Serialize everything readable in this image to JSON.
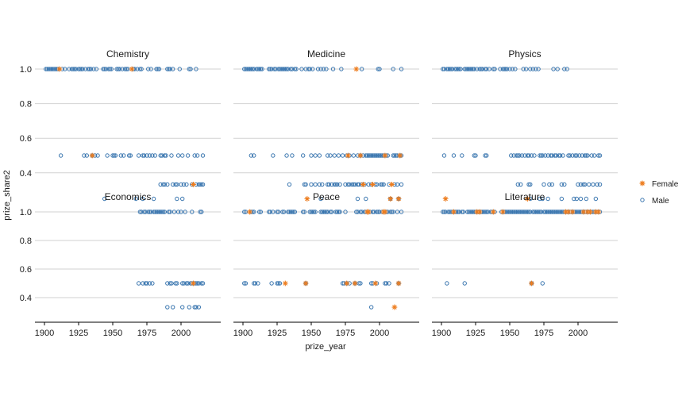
{
  "figure_title": "",
  "chart_data": {
    "type": "scatter",
    "title": "",
    "xlabel": "prize_year",
    "ylabel": "prize_share2",
    "x_ticks": [
      1900,
      1925,
      1950,
      1975,
      2000
    ],
    "y_ticks": [
      1.0,
      0.8,
      0.6,
      0.4
    ],
    "y_tick_labels": [
      "1.0",
      "0.8",
      "0.6",
      "0.4"
    ],
    "x_domain": [
      1900,
      2016
    ],
    "y_domain": [
      0.25,
      1.0
    ],
    "grid": "horizontal-only",
    "legend_position": "right",
    "legend": [
      {
        "label": "Female",
        "marker": "asterisk-icon",
        "color": "#ed7d1f"
      },
      {
        "label": "Male",
        "marker": "open-circle-icon",
        "color": "#3a76af"
      }
    ],
    "colors": {
      "female": "#ed7d1f",
      "male": "#3a76af",
      "gridline": "#d2d2d2",
      "axis_line": "#000000",
      "text": "#1a1a1a"
    },
    "facets": [
      {
        "title": "Chemistry",
        "row": 0,
        "col": 0,
        "groups": [
          {
            "share": 1.0,
            "male": [
              1901,
              1902,
              1903,
              1904,
              1905,
              1906,
              1907,
              1908,
              1909,
              1910,
              1913,
              1915,
              1918,
              1920,
              1921,
              1922,
              1923,
              1925,
              1926,
              1927,
              1928,
              1930,
              1932,
              1933,
              1934,
              1936,
              1938,
              1943,
              1944,
              1945,
              1947,
              1948,
              1949,
              1953,
              1954,
              1955,
              1957,
              1959,
              1960,
              1961,
              1965,
              1966,
              1968,
              1970,
              1971,
              1976,
              1978,
              1982,
              1983,
              1984,
              1990,
              1991,
              1992,
              1994,
              1999,
              2006,
              2007,
              2011
            ],
            "female": [
              1911,
              1964
            ]
          },
          {
            "share": 0.5,
            "male": [
              1912,
              1929,
              1931,
              1935,
              1937,
              1939,
              1946,
              1950,
              1951,
              1952,
              1956,
              1958,
              1962,
              1963,
              1969,
              1972,
              1973,
              1975,
              1977,
              1979,
              1981,
              1985,
              1986,
              1988,
              1989,
              1993,
              1998,
              2001,
              2005,
              2010,
              2012,
              2016
            ],
            "female": [
              1935
            ]
          },
          {
            "share": 0.333,
            "male": [
              1985,
              1987,
              1988,
              1990,
              1994,
              1996,
              1997,
              2000,
              2002,
              2004,
              2008,
              2011,
              2013,
              2014,
              2015,
              2016
            ],
            "female": [
              2009
            ]
          },
          {
            "share": 0.25,
            "male": [
              1944,
              1967,
              1972,
              1980,
              1997,
              2001
            ],
            "female": []
          }
        ]
      },
      {
        "title": "Medicine",
        "row": 0,
        "col": 1,
        "groups": [
          {
            "share": 1.0,
            "male": [
              1901,
              1902,
              1903,
              1904,
              1905,
              1906,
              1907,
              1908,
              1910,
              1911,
              1912,
              1913,
              1914,
              1919,
              1920,
              1921,
              1923,
              1924,
              1926,
              1927,
              1928,
              1929,
              1930,
              1931,
              1932,
              1933,
              1935,
              1936,
              1938,
              1939,
              1943,
              1946,
              1948,
              1949,
              1951,
              1955,
              1957,
              1959,
              1961,
              1966,
              1972,
              1987,
              1999,
              2000,
              2010,
              2016
            ],
            "female": [
              1983
            ]
          },
          {
            "share": 0.5,
            "male": [
              1906,
              1908,
              1922,
              1932,
              1936,
              1944,
              1950,
              1953,
              1956,
              1962,
              1964,
              1967,
              1970,
              1973,
              1976,
              1978,
              1981,
              1984,
              1986,
              1988,
              1990,
              1991,
              1992,
              1993,
              1994,
              1995,
              1996,
              1997,
              1998,
              1999,
              2000,
              2001,
              2002,
              2003,
              2005,
              2006,
              2010,
              2011,
              2012,
              2013,
              2015,
              2016
            ],
            "female": [
              1977,
              1986,
              2004,
              2015
            ]
          },
          {
            "share": 0.333,
            "male": [
              1934,
              1945,
              1946,
              1950,
              1953,
              1956,
              1958,
              1962,
              1963,
              1965,
              1967,
              1968,
              1969,
              1971,
              1975,
              1977,
              1978,
              1980,
              1981,
              1982,
              1984,
              1985,
              1987,
              1989,
              1992,
              1994,
              1997,
              1998,
              2001,
              2002,
              2003,
              2007,
              2011,
              2013,
              2016
            ],
            "female": [
              1988,
              1995,
              2009
            ]
          },
          {
            "share": 0.25,
            "male": [
              1957,
              1984,
              1990,
              2008,
              2014
            ],
            "female": [
              1947,
              2008,
              2014
            ]
          }
        ]
      },
      {
        "title": "Physics",
        "row": 0,
        "col": 2,
        "groups": [
          {
            "share": 1.0,
            "male": [
              1901,
              1902,
              1904,
              1905,
              1906,
              1907,
              1908,
              1910,
              1911,
              1912,
              1913,
              1914,
              1917,
              1918,
              1919,
              1920,
              1921,
              1922,
              1923,
              1924,
              1926,
              1928,
              1929,
              1930,
              1932,
              1933,
              1935,
              1938,
              1939,
              1943,
              1945,
              1946,
              1947,
              1948,
              1950,
              1952,
              1954,
              1960,
              1962,
              1965,
              1967,
              1969,
              1971,
              1982,
              1985,
              1990,
              1992
            ],
            "female": []
          },
          {
            "share": 0.5,
            "male": [
              1902,
              1909,
              1915,
              1924,
              1925,
              1932,
              1933,
              1951,
              1953,
              1955,
              1956,
              1957,
              1959,
              1961,
              1963,
              1964,
              1966,
              1968,
              1972,
              1973,
              1974,
              1976,
              1978,
              1980,
              1981,
              1983,
              1984,
              1986,
              1987,
              1989,
              1993,
              1994,
              1996,
              1998,
              1999,
              2001,
              2003,
              2005,
              2006,
              2007,
              2010,
              2012,
              2015,
              2016
            ],
            "female": []
          },
          {
            "share": 0.333,
            "male": [
              1956,
              1958,
              1964,
              1965,
              1975,
              1979,
              1981,
              1988,
              1990,
              2000,
              2002,
              2004,
              2005,
              2008,
              2011,
              2014,
              2016
            ],
            "female": []
          },
          {
            "share": 0.25,
            "male": [
              1965,
              1972,
              1974,
              1978,
              1988,
              1997,
              1999,
              2002,
              2006,
              2013
            ],
            "female": [
              1903,
              1963
            ]
          }
        ]
      },
      {
        "title": "Economics",
        "row": 1,
        "col": 0,
        "groups": [
          {
            "share": 1.0,
            "male": [
              1970,
              1971,
              1973,
              1974,
              1976,
              1977,
              1978,
              1980,
              1981,
              1982,
              1983,
              1984,
              1985,
              1986,
              1987,
              1988,
              1991,
              1992,
              1995,
              1998,
              2000,
              2003,
              2008,
              2014,
              2015
            ],
            "female": []
          },
          {
            "share": 0.5,
            "male": [
              1969,
              1972,
              1974,
              1975,
              1977,
              1979,
              1990,
              1992,
              1993,
              1996,
              1997,
              2001,
              2002,
              2004,
              2005,
              2007,
              2008,
              2010,
              2011,
              2012,
              2013,
              2015,
              2016
            ],
            "female": [
              2009
            ]
          },
          {
            "share": 0.333,
            "male": [
              1990,
              1994,
              2001,
              2006,
              2010,
              2011,
              2013
            ],
            "female": []
          }
        ]
      },
      {
        "title": "Peace",
        "row": 1,
        "col": 1,
        "groups": [
          {
            "share": 1.0,
            "male": [
              1901,
              1902,
              1906,
              1907,
              1908,
              1912,
              1913,
              1919,
              1920,
              1922,
              1925,
              1926,
              1929,
              1930,
              1933,
              1934,
              1935,
              1936,
              1937,
              1938,
              1944,
              1945,
              1949,
              1950,
              1951,
              1952,
              1953,
              1957,
              1958,
              1959,
              1960,
              1961,
              1962,
              1964,
              1965,
              1968,
              1969,
              1970,
              1971,
              1975,
              1983,
              1984,
              1986,
              1987,
              1989,
              1990,
              1993,
              1995,
              1996,
              1998,
              1999,
              2000,
              2002,
              2005,
              2006,
              2008,
              2009,
              2010,
              2013,
              2016
            ],
            "female": [
              1905,
              1991,
              1992,
              2003,
              2004
            ]
          },
          {
            "share": 0.5,
            "male": [
              1901,
              1902,
              1908,
              1909,
              1911,
              1921,
              1925,
              1926,
              1927,
              1946,
              1973,
              1974,
              1976,
              1978,
              1982,
              1985,
              1986,
              1994,
              1995,
              1998,
              2004,
              2005,
              2007,
              2014
            ],
            "female": [
              1931,
              1946,
              1976,
              1982,
              1997,
              2014
            ]
          },
          {
            "share": 0.333,
            "male": [
              1994
            ],
            "female": [
              2011
            ]
          }
        ]
      },
      {
        "title": "Literature",
        "row": 1,
        "col": 2,
        "groups": [
          {
            "share": 1.0,
            "male": [
              1901,
              1902,
              1903,
              1905,
              1906,
              1907,
              1908,
              1910,
              1911,
              1912,
              1913,
              1915,
              1916,
              1919,
              1920,
              1921,
              1922,
              1923,
              1924,
              1925,
              1927,
              1929,
              1930,
              1931,
              1932,
              1933,
              1934,
              1936,
              1937,
              1939,
              1944,
              1946,
              1947,
              1948,
              1949,
              1950,
              1951,
              1952,
              1953,
              1954,
              1955,
              1956,
              1957,
              1958,
              1959,
              1960,
              1961,
              1962,
              1963,
              1964,
              1965,
              1967,
              1968,
              1969,
              1970,
              1971,
              1972,
              1973,
              1975,
              1976,
              1977,
              1978,
              1979,
              1980,
              1981,
              1982,
              1983,
              1984,
              1985,
              1986,
              1987,
              1988,
              1989,
              1990,
              1992,
              1994,
              1995,
              1997,
              1998,
              1999,
              2000,
              2001,
              2002,
              2003,
              2005,
              2006,
              2008,
              2010,
              2011,
              2012,
              2014,
              2016
            ],
            "female": [
              1909,
              1926,
              1928,
              1938,
              1945,
              1991,
              1993,
              1996,
              2004,
              2007,
              2009,
              2013,
              2015
            ]
          },
          {
            "share": 0.5,
            "male": [
              1904,
              1917,
              1966,
              1974
            ],
            "female": [
              1966
            ]
          }
        ]
      }
    ]
  }
}
